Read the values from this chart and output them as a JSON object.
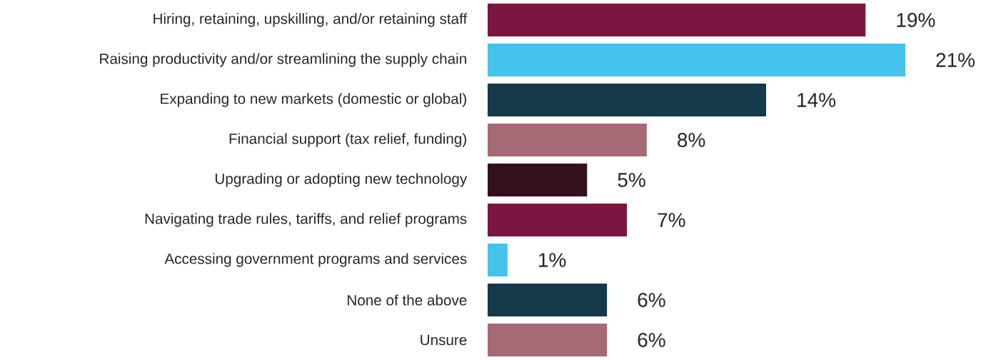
{
  "chart_data": {
    "type": "bar",
    "orientation": "horizontal",
    "categories": [
      "Hiring, retaining, upskilling, and/or retaining staff",
      "Raising productivity and/or streamlining the supply chain",
      "Expanding to new markets (domestic or global)",
      "Financial support (tax relief, funding)",
      "Upgrading or adopting new technology",
      "Navigating trade rules, tariffs, and relief programs",
      "Accessing government programs and services",
      "None of the above",
      "Unsure"
    ],
    "values": [
      19,
      21,
      14,
      8,
      5,
      7,
      1,
      6,
      6
    ],
    "value_labels": [
      "19%",
      "21%",
      "14%",
      "8%",
      "5%",
      "7%",
      "1%",
      "6%",
      "6%"
    ],
    "colors": [
      "#7b1640",
      "#45c3ec",
      "#153a4a",
      "#a56a75",
      "#33111d",
      "#7b1640",
      "#45c3ec",
      "#153a4a",
      "#a56a75"
    ]
  }
}
